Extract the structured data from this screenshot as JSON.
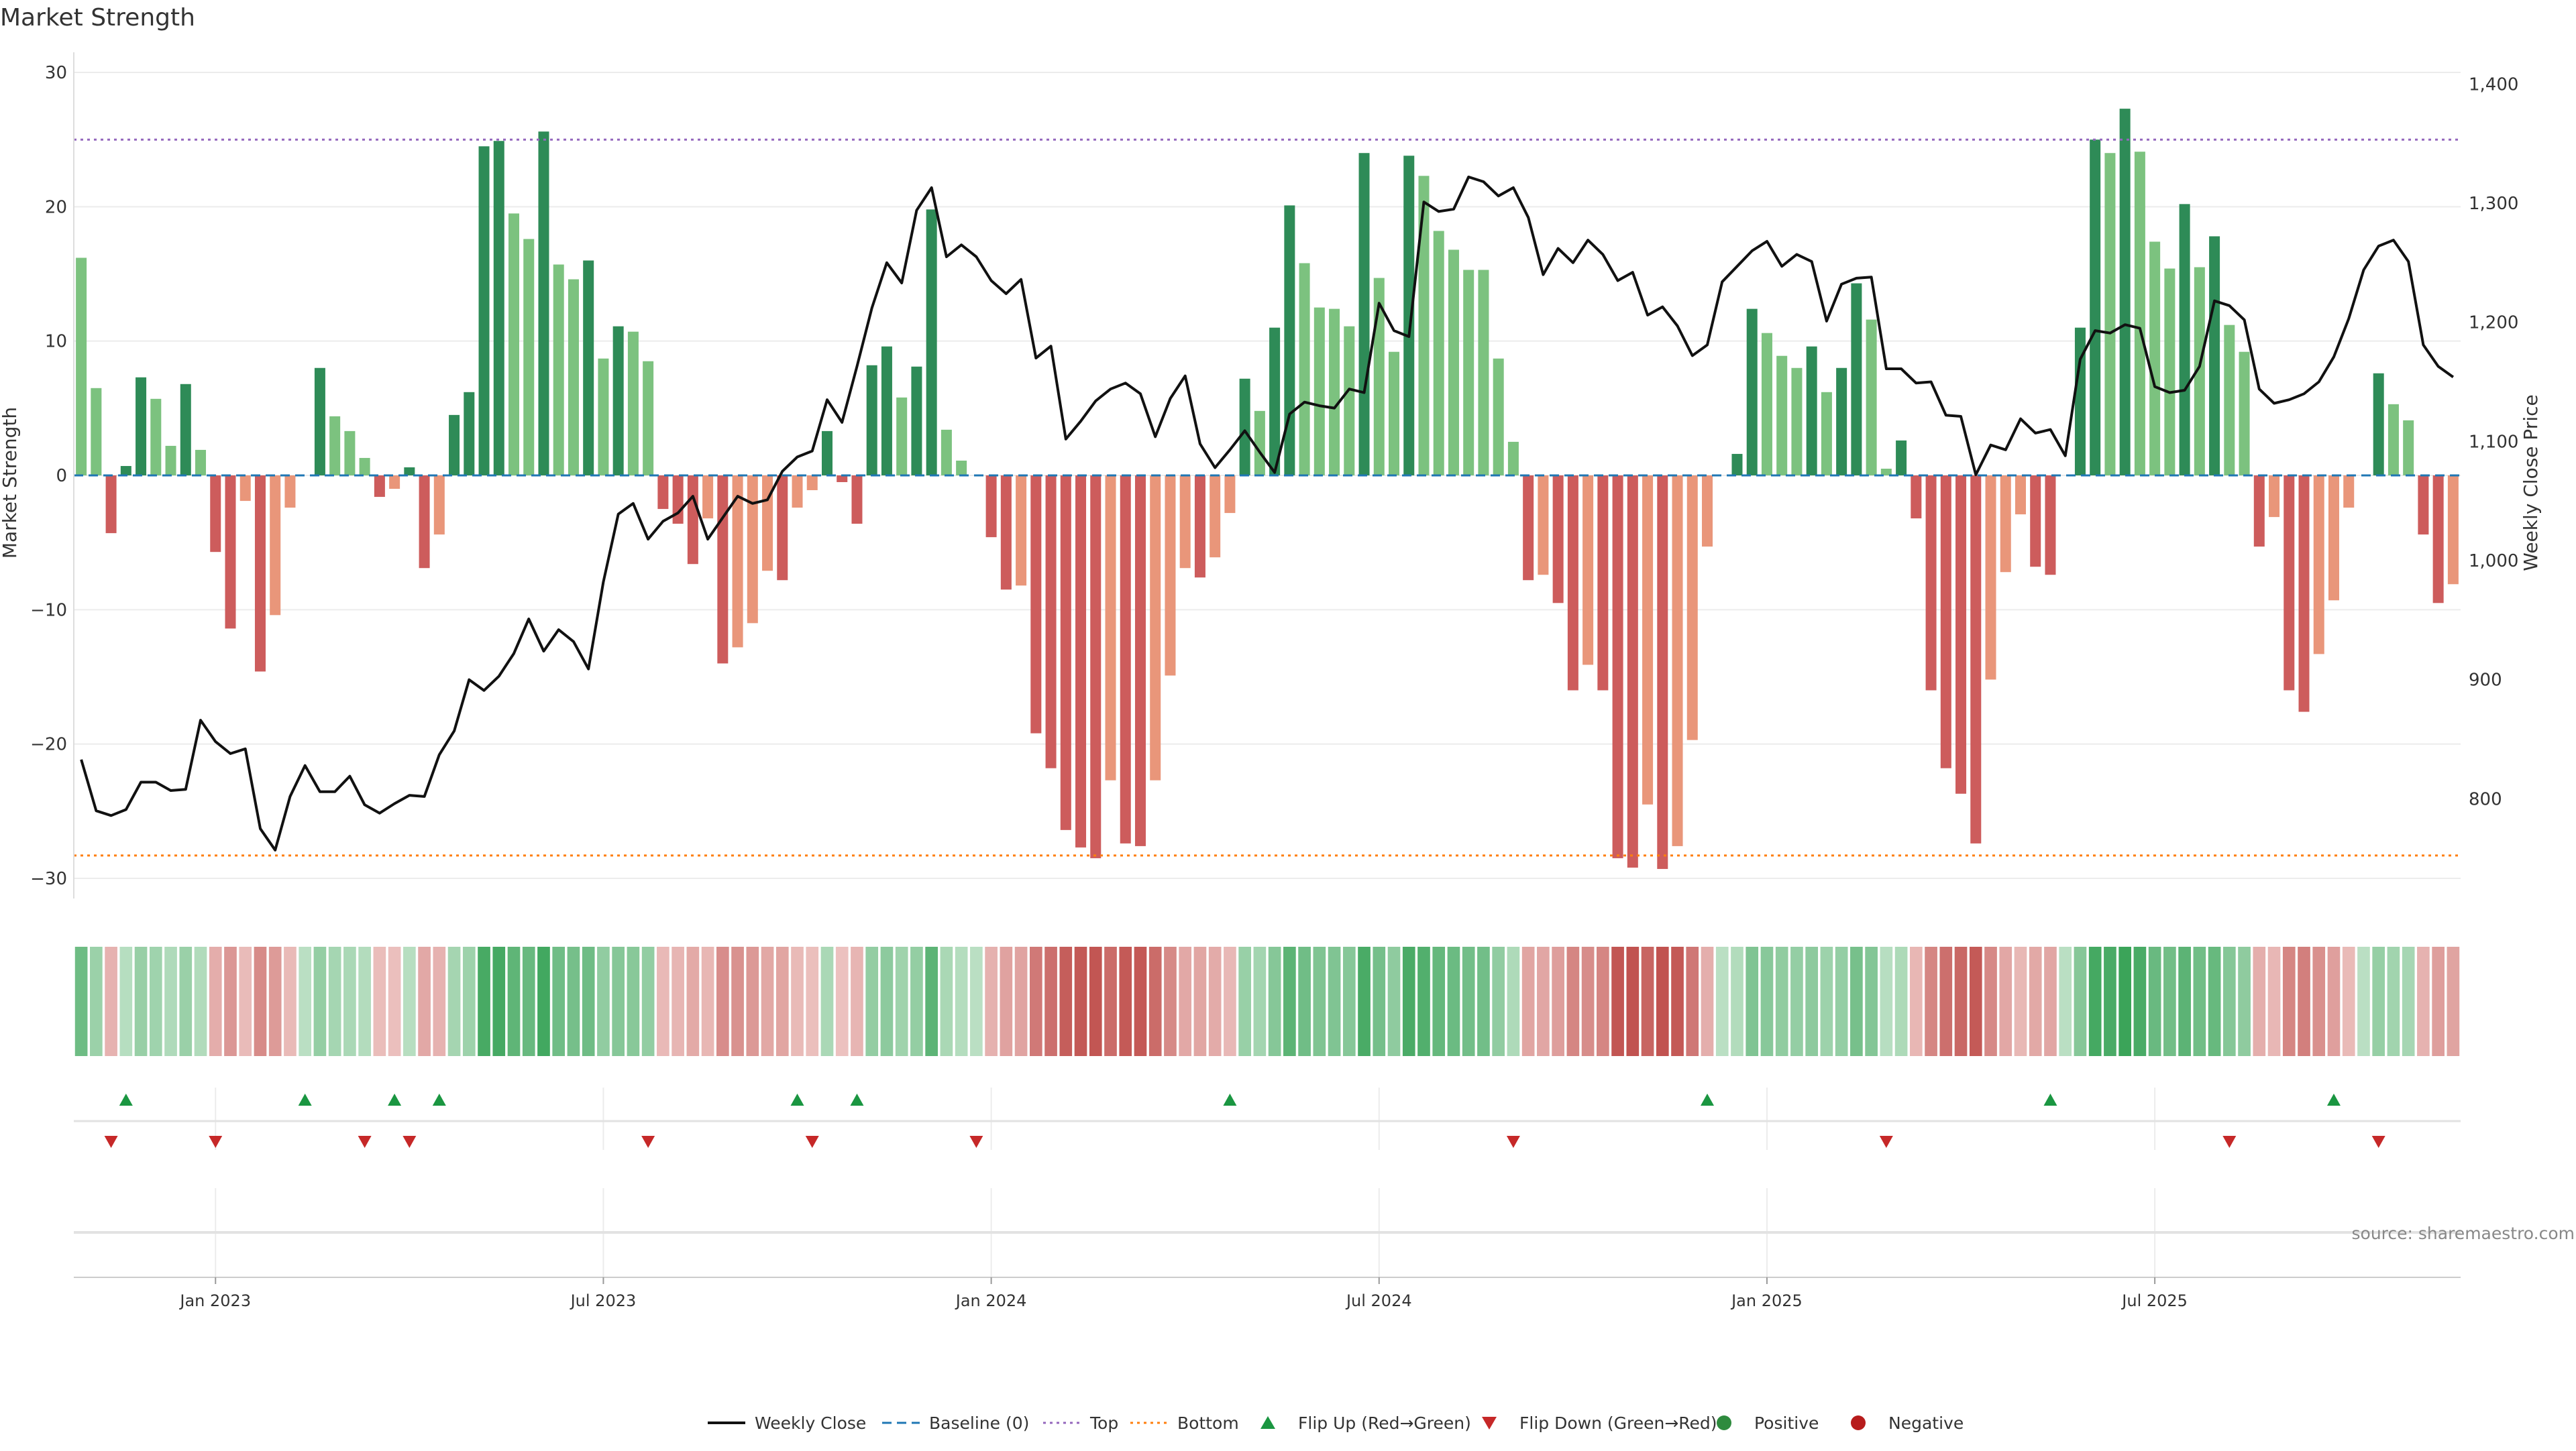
{
  "chart_data": {
    "type": "bar",
    "title": "Market Strength",
    "ylabel": "Market Strength",
    "y2label": "Weekly Close Price",
    "source": "source: sharemaestro.com",
    "ylim": [
      -31,
      31
    ],
    "y_ticks": [
      30,
      20,
      10,
      0,
      -10,
      -20,
      -30
    ],
    "y_tick_labels": [
      "30",
      "20",
      "10",
      "0",
      "−10",
      "−20",
      "−30"
    ],
    "y2lim": [
      722,
      1421
    ],
    "y2_ticks": [
      1400,
      1300,
      1200,
      1100,
      1000,
      900,
      800
    ],
    "y2_tick_labels": [
      "1,400",
      "1,300",
      "1,200",
      "1,100",
      "1,000",
      "900",
      "800"
    ],
    "top_line": 25,
    "bottom_line": -28.3,
    "x_tick_labels": [
      "Jan 2023",
      "Jul 2023",
      "Jan 2024",
      "Jul 2024",
      "Jan 2025",
      "Jul 2025"
    ],
    "x_tick_weeks": [
      9,
      35,
      61,
      87,
      113,
      139
    ],
    "strength": [
      16.2,
      6.5,
      -4.3,
      0.7,
      7.3,
      5.7,
      2.2,
      6.8,
      1.9,
      -5.7,
      -11.4,
      -1.9,
      -14.6,
      -10.4,
      -2.4,
      0,
      8.0,
      4.4,
      3.3,
      1.3,
      -1.6,
      -1.0,
      0.6,
      -6.9,
      -4.4,
      4.5,
      6.2,
      24.5,
      24.9,
      19.5,
      17.6,
      25.6,
      15.7,
      14.6,
      16.0,
      8.7,
      11.1,
      10.7,
      8.5,
      -2.5,
      -3.6,
      -6.6,
      -3.2,
      -14.0,
      -12.8,
      -11.0,
      -7.1,
      -7.8,
      -2.4,
      -1.1,
      3.3,
      -0.5,
      -3.6,
      8.2,
      9.6,
      5.8,
      8.1,
      19.8,
      3.4,
      1.1,
      0,
      -4.6,
      -8.5,
      -8.2,
      -19.2,
      -21.8,
      -26.4,
      -27.7,
      -28.5,
      -22.7,
      -27.4,
      -27.6,
      -22.7,
      -14.9,
      -6.9,
      -7.6,
      -6.1,
      -2.8,
      7.2,
      4.8,
      11.0,
      20.1,
      15.8,
      12.5,
      12.4,
      11.1,
      24.0,
      14.7,
      9.2,
      23.8,
      22.3,
      18.2,
      16.8,
      15.3,
      15.3,
      8.7,
      2.5,
      -7.8,
      -7.4,
      -9.5,
      -16.0,
      -14.1,
      -16.0,
      -28.5,
      -29.2,
      -24.5,
      -29.3,
      -27.6,
      -19.7,
      -5.3,
      0,
      1.6,
      12.4,
      10.6,
      8.9,
      8.0,
      9.6,
      6.2,
      8.0,
      14.3,
      11.6,
      0.5,
      2.6,
      -3.2,
      -16.0,
      -21.8,
      -23.7,
      -27.4,
      -15.2,
      -7.2,
      -2.9,
      -6.8,
      -7.4,
      0,
      11.0,
      25.0,
      24.0,
      27.3,
      24.1,
      17.4,
      15.4,
      20.2,
      15.5,
      17.8,
      11.2,
      9.2,
      -5.3,
      -3.1,
      -16.0,
      -17.6,
      -13.3,
      -9.3,
      -2.4,
      0,
      7.6,
      5.3,
      4.1,
      -4.4,
      -9.5,
      -8.1
    ],
    "weekly_close": [
      833,
      790,
      786,
      791,
      814,
      814,
      807,
      808,
      866,
      848,
      838,
      842,
      775,
      757,
      802,
      828,
      806,
      806,
      819,
      795,
      788,
      796,
      803,
      802,
      837,
      857,
      900,
      891,
      903,
      922,
      951,
      924,
      942,
      932,
      909,
      982,
      1039,
      1048,
      1018,
      1033,
      1040,
      1054,
      1018,
      1036,
      1054,
      1048,
      1051,
      1075,
      1087,
      1092,
      1135,
      1116,
      1163,
      1212,
      1250,
      1233,
      1294,
      1313,
      1255,
      1265,
      1255,
      1235,
      1224,
      1236,
      1170,
      1180,
      1102,
      1117,
      1134,
      1144,
      1149,
      1140,
      1104,
      1136,
      1155,
      1098,
      1078,
      1093,
      1109,
      1091,
      1074,
      1123,
      1133,
      1130,
      1128,
      1144,
      1141,
      1216,
      1193,
      1188,
      1301,
      1293,
      1295,
      1322,
      1318,
      1306,
      1313,
      1288,
      1240,
      1262,
      1250,
      1269,
      1257,
      1235,
      1242,
      1206,
      1213,
      1197,
      1172,
      1181,
      1234,
      1247,
      1260,
      1268,
      1247,
      1257,
      1251,
      1201,
      1232,
      1237,
      1238,
      1161,
      1161,
      1149,
      1150,
      1122,
      1121,
      1072,
      1097,
      1093,
      1119,
      1107,
      1110,
      1088,
      1169,
      1193,
      1191,
      1198,
      1195,
      1146,
      1141,
      1143,
      1163,
      1218,
      1214,
      1202,
      1144,
      1132,
      1135,
      1140,
      1150,
      1171,
      1203,
      1244,
      1264,
      1269,
      1251,
      1181,
      1163,
      1154
    ],
    "markers": {
      "flip_up_weeks": [
        3,
        15,
        21,
        24,
        48,
        52,
        77,
        109,
        132,
        151
      ],
      "flip_down_weeks": [
        2,
        9,
        19,
        22,
        38,
        49,
        60,
        96,
        121,
        144,
        154
      ]
    },
    "legend": [
      {
        "label": "Weekly Close",
        "kind": "line",
        "color": "#111111"
      },
      {
        "label": "Baseline (0)",
        "kind": "dash",
        "color": "#1f77b4"
      },
      {
        "label": "Top",
        "kind": "dot",
        "color": "#9467bd"
      },
      {
        "label": "Bottom",
        "kind": "dot",
        "color": "#ff7f0e"
      },
      {
        "label": "Flip Up (Red→Green)",
        "kind": "triangle-up",
        "color": "#1a9641"
      },
      {
        "label": "Flip Down (Green→Red)",
        "kind": "triangle-down",
        "color": "#c62828"
      },
      {
        "label": "Positive",
        "kind": "dot-marker",
        "color": "#2e8b3e"
      },
      {
        "label": "Negative",
        "kind": "dot-marker",
        "color": "#b71c1c"
      }
    ],
    "legend_position": "bottom-center"
  },
  "colors": {
    "pos_strong": "#2e8b57",
    "pos_light": "#7cc27f",
    "neg_strong": "#cd5c5c",
    "neg_light": "#e9967a",
    "line": "#111111",
    "top": "#9467bd",
    "bottom": "#ff7f0e",
    "baseline": "#1f77b4",
    "flip_up": "#1a9641",
    "flip_down": "#c62828",
    "grid": "#ececec",
    "text": "#333333"
  }
}
